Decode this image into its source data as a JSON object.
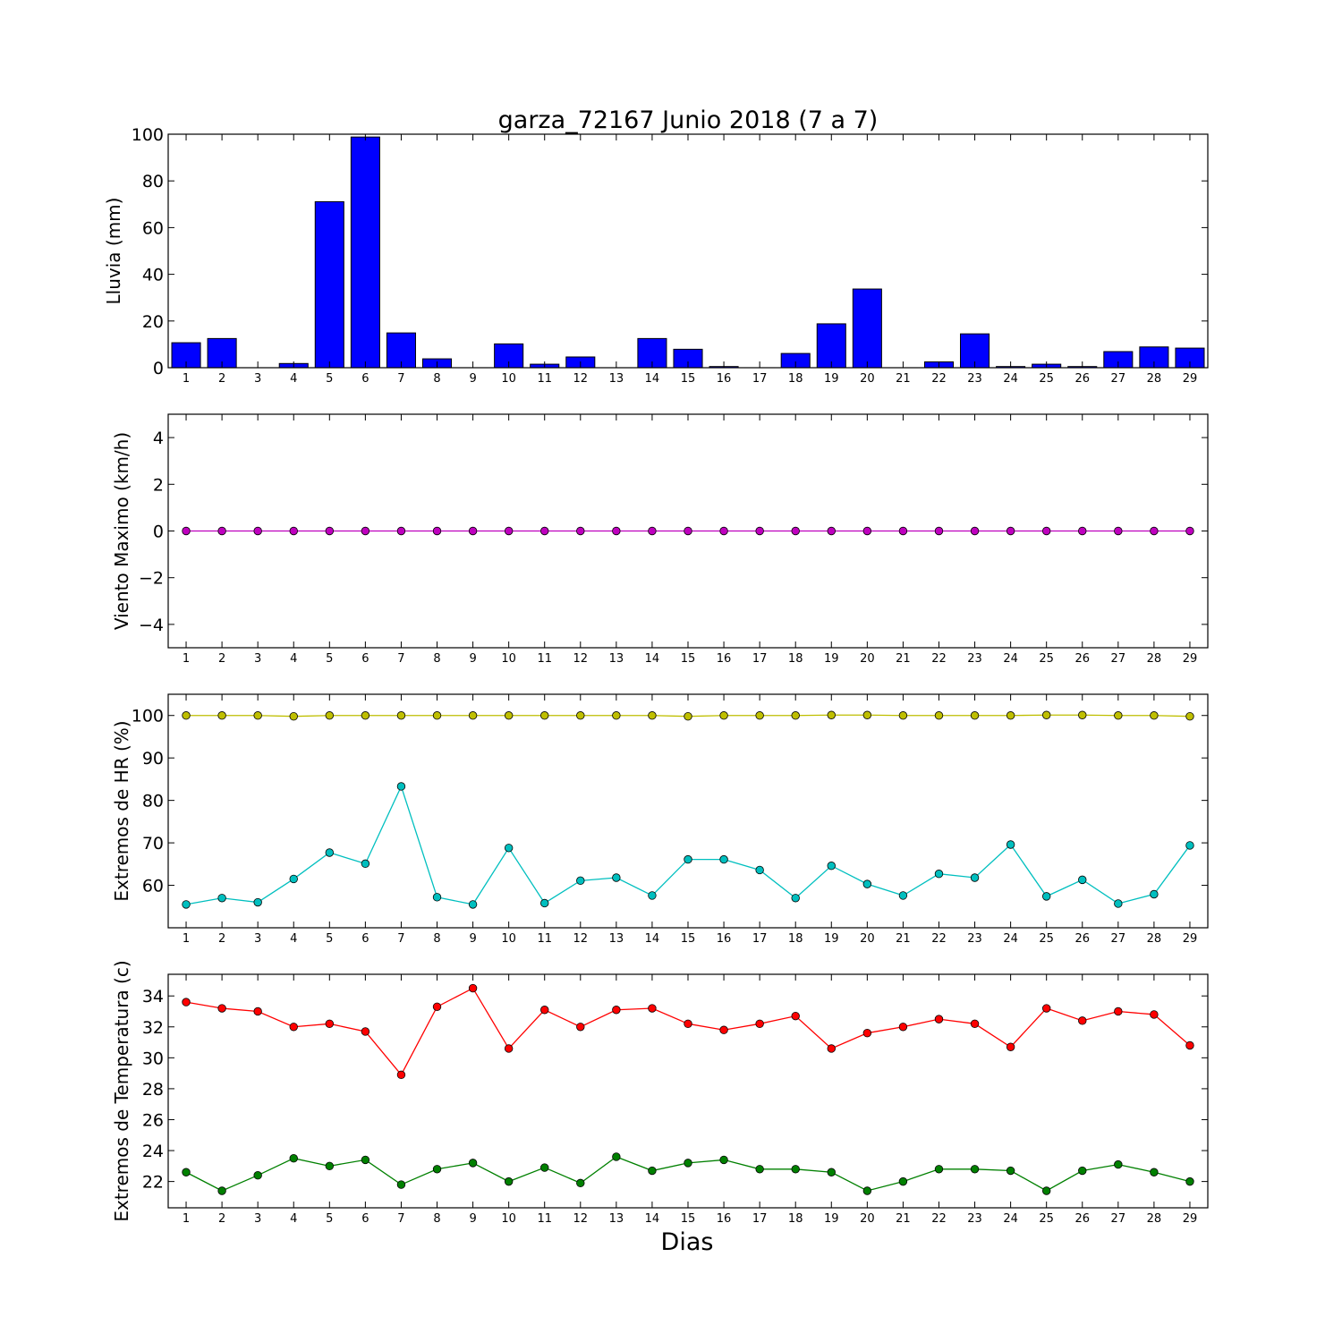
{
  "figure": {
    "title": "garza_72167 Junio 2018  (7 a 7)",
    "xlabel": "Dias"
  },
  "chart_data": [
    {
      "type": "bar",
      "ylabel": "Lluvia (mm)",
      "ylim": [
        0,
        100
      ],
      "yticks": [
        0,
        20,
        40,
        60,
        80,
        100
      ],
      "x": [
        1,
        2,
        3,
        4,
        5,
        6,
        7,
        8,
        9,
        10,
        11,
        12,
        13,
        14,
        15,
        16,
        17,
        18,
        19,
        20,
        21,
        22,
        23,
        24,
        25,
        26,
        27,
        28,
        29
      ],
      "series": [
        {
          "color": "#0000ff",
          "values": [
            10.7,
            12.5,
            0,
            1.8,
            71.1,
            98.8,
            14.9,
            3.8,
            0,
            10.2,
            1.5,
            4.6,
            0,
            12.5,
            7.9,
            0.5,
            0,
            6.1,
            18.8,
            33.7,
            0,
            2.5,
            14.5,
            0.5,
            1.5,
            0.5,
            6.9,
            8.9,
            8.4
          ]
        }
      ]
    },
    {
      "type": "line",
      "ylabel": "Viento Maximo (km/h)",
      "ylim": [
        -5,
        5
      ],
      "yticks": [
        -4,
        -2,
        0,
        2,
        4
      ],
      "tick_labels": [
        "−4",
        "−2",
        "0",
        "2",
        "4"
      ],
      "x": [
        1,
        2,
        3,
        4,
        5,
        6,
        7,
        8,
        9,
        10,
        11,
        12,
        13,
        14,
        15,
        16,
        17,
        18,
        19,
        20,
        21,
        22,
        23,
        24,
        25,
        26,
        27,
        28,
        29
      ],
      "series": [
        {
          "color": "#bf00bf",
          "values": [
            0,
            0,
            0,
            0,
            0,
            0,
            0,
            0,
            0,
            0,
            0,
            0,
            0,
            0,
            0,
            0,
            0,
            0,
            0,
            0,
            0,
            0,
            0,
            0,
            0,
            0,
            0,
            0,
            0
          ]
        }
      ]
    },
    {
      "type": "line",
      "ylabel": "Extremos de HR (%)",
      "ylim": [
        50,
        105
      ],
      "yticks": [
        60,
        70,
        80,
        90,
        100
      ],
      "x": [
        1,
        2,
        3,
        4,
        5,
        6,
        7,
        8,
        9,
        10,
        11,
        12,
        13,
        14,
        15,
        16,
        17,
        18,
        19,
        20,
        21,
        22,
        23,
        24,
        25,
        26,
        27,
        28,
        29
      ],
      "series": [
        {
          "color": "#bfbf00",
          "values": [
            100,
            100,
            100,
            99.8,
            100,
            100,
            100,
            100,
            100,
            100,
            100,
            100,
            100,
            100,
            99.8,
            100,
            100,
            100,
            100.1,
            100.1,
            100,
            100,
            100,
            100,
            100.1,
            100.1,
            100,
            100,
            99.8
          ]
        },
        {
          "color": "#00bfbf",
          "values": [
            55.5,
            57,
            56,
            61.5,
            67.7,
            65.1,
            83.3,
            57.2,
            55.5,
            68.8,
            55.8,
            61.1,
            61.8,
            57.6,
            66.1,
            66.1,
            63.6,
            57,
            64.6,
            60.3,
            57.6,
            62.7,
            61.8,
            69.6,
            57.4,
            61.3,
            55.7,
            57.9,
            69.4
          ]
        }
      ]
    },
    {
      "type": "line",
      "ylabel": "Extremos de Temperatura (c)",
      "ylim": [
        20.3,
        35.4
      ],
      "yticks": [
        22,
        24,
        26,
        28,
        30,
        32,
        34
      ],
      "x": [
        1,
        2,
        3,
        4,
        5,
        6,
        7,
        8,
        9,
        10,
        11,
        12,
        13,
        14,
        15,
        16,
        17,
        18,
        19,
        20,
        21,
        22,
        23,
        24,
        25,
        26,
        27,
        28,
        29
      ],
      "series": [
        {
          "color": "#ff0000",
          "values": [
            33.6,
            33.2,
            33,
            32,
            32.2,
            31.7,
            28.9,
            33.3,
            34.5,
            30.6,
            33.1,
            32,
            33.1,
            33.2,
            32.2,
            31.8,
            32.2,
            32.7,
            30.6,
            31.6,
            32,
            32.5,
            32.2,
            30.7,
            33.2,
            32.4,
            33,
            32.8,
            30.8
          ]
        },
        {
          "color": "#008000",
          "values": [
            22.6,
            21.4,
            22.4,
            23.5,
            23,
            23.4,
            21.8,
            22.8,
            23.2,
            22,
            22.9,
            21.9,
            23.6,
            22.7,
            23.2,
            23.4,
            22.8,
            22.8,
            22.6,
            21.4,
            22,
            22.8,
            22.8,
            22.7,
            21.4,
            22.7,
            23.1,
            22.6,
            22
          ]
        }
      ]
    }
  ]
}
